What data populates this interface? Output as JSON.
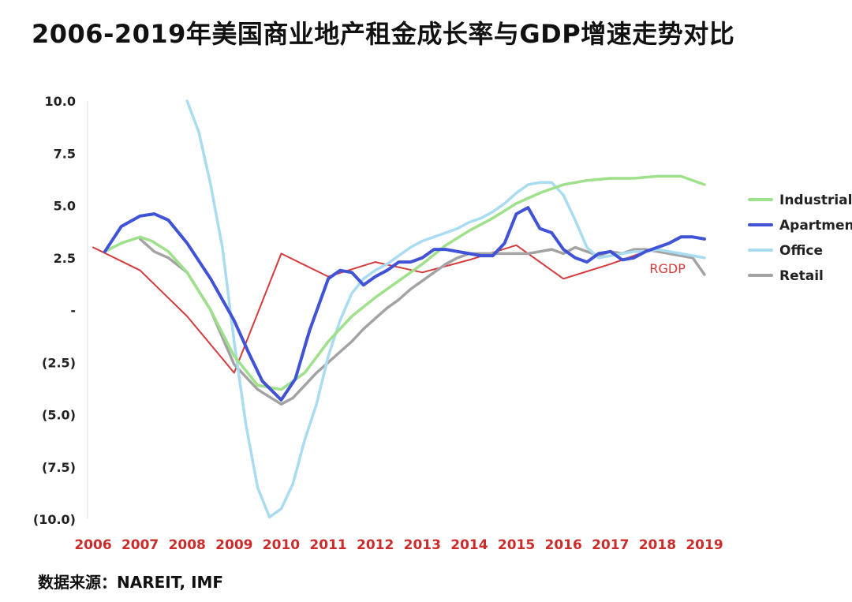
{
  "title": "2006-2019年美国商业地产租金成长率与GDP增速走势对比",
  "source": "数据来源：NAREIT, IMF",
  "chart_data": {
    "type": "line",
    "title": "2006-2019年美国商业地产租金成长率与GDP增速走势对比",
    "xlabel": "",
    "ylabel": "",
    "xlim": [
      2006,
      2019
    ],
    "ylim": [
      -10,
      10
    ],
    "x_ticks": [
      "2006",
      "2007",
      "2008",
      "2009",
      "2010",
      "2011",
      "2012",
      "2013",
      "2014",
      "2015",
      "2016",
      "2017",
      "2018",
      "2019"
    ],
    "y_ticks": [
      {
        "value": 10,
        "label": "10.0"
      },
      {
        "value": 7.5,
        "label": "7.5"
      },
      {
        "value": 5,
        "label": "5.0"
      },
      {
        "value": 2.5,
        "label": "2.5"
      },
      {
        "value": 0,
        "label": "-"
      },
      {
        "value": -2.5,
        "label": "(2.5)"
      },
      {
        "value": -5,
        "label": "(5.0)"
      },
      {
        "value": -7.5,
        "label": "(7.5)"
      },
      {
        "value": -10,
        "label": "(10.0)"
      }
    ],
    "grid": false,
    "legend_position": "right",
    "series": [
      {
        "name": "Industrial",
        "color": "#9fe08a",
        "x": [
          2006.25,
          2006.6,
          2007.0,
          2007.25,
          2007.6,
          2008.0,
          2008.5,
          2009.0,
          2009.5,
          2010.0,
          2010.5,
          2011.0,
          2011.5,
          2012.0,
          2012.5,
          2013.0,
          2013.5,
          2014.0,
          2014.5,
          2015.0,
          2015.5,
          2016.0,
          2016.5,
          2017.0,
          2017.5,
          2018.0,
          2018.5,
          2019.0
        ],
        "y": [
          2.8,
          3.2,
          3.5,
          3.3,
          2.8,
          1.8,
          0.0,
          -2.2,
          -3.6,
          -3.8,
          -3.0,
          -1.5,
          -0.3,
          0.6,
          1.4,
          2.2,
          3.1,
          3.8,
          4.4,
          5.1,
          5.6,
          6.0,
          6.2,
          6.3,
          6.3,
          6.4,
          6.4,
          6.0
        ]
      },
      {
        "name": "Apartment",
        "color": "#4052d6",
        "x": [
          2006.25,
          2006.6,
          2007.0,
          2007.3,
          2007.6,
          2008.0,
          2008.5,
          2009.0,
          2009.3,
          2009.6,
          2010.0,
          2010.3,
          2010.6,
          2011.0,
          2011.25,
          2011.5,
          2011.75,
          2012.0,
          2012.25,
          2012.5,
          2012.75,
          2013.0,
          2013.25,
          2013.5,
          2013.75,
          2014.0,
          2014.25,
          2014.5,
          2014.75,
          2015.0,
          2015.25,
          2015.5,
          2015.75,
          2016.0,
          2016.25,
          2016.5,
          2016.75,
          2017.0,
          2017.25,
          2017.5,
          2017.75,
          2018.0,
          2018.25,
          2018.5,
          2018.75,
          2019.0
        ],
        "y": [
          2.8,
          4.0,
          4.5,
          4.6,
          4.3,
          3.2,
          1.5,
          -0.5,
          -2.0,
          -3.4,
          -4.3,
          -3.3,
          -1.0,
          1.5,
          1.9,
          1.8,
          1.2,
          1.6,
          1.9,
          2.3,
          2.3,
          2.5,
          2.9,
          2.9,
          2.8,
          2.7,
          2.6,
          2.6,
          3.2,
          4.6,
          4.9,
          3.9,
          3.7,
          2.9,
          2.5,
          2.3,
          2.7,
          2.8,
          2.4,
          2.5,
          2.8,
          3.0,
          3.2,
          3.5,
          3.5,
          3.4
        ]
      },
      {
        "name": "Office",
        "color": "#a9dcf0",
        "x": [
          2008.0,
          2008.25,
          2008.5,
          2008.75,
          2009.0,
          2009.25,
          2009.5,
          2009.75,
          2010.0,
          2010.25,
          2010.5,
          2010.75,
          2011.0,
          2011.25,
          2011.5,
          2011.75,
          2012.0,
          2012.25,
          2012.5,
          2012.75,
          2013.0,
          2013.25,
          2013.5,
          2013.75,
          2014.0,
          2014.25,
          2014.5,
          2014.75,
          2015.0,
          2015.25,
          2015.5,
          2015.75,
          2016.0,
          2016.25,
          2016.5,
          2016.75,
          2017.0,
          2017.25,
          2017.5,
          2017.75,
          2018.0,
          2018.25,
          2018.5,
          2018.75,
          2019.0
        ],
        "y": [
          10.0,
          8.5,
          6.0,
          3.0,
          -1.5,
          -5.5,
          -8.5,
          -9.9,
          -9.5,
          -8.3,
          -6.2,
          -4.5,
          -2.2,
          -0.5,
          0.8,
          1.5,
          1.9,
          2.2,
          2.6,
          3.0,
          3.3,
          3.5,
          3.7,
          3.9,
          4.2,
          4.4,
          4.7,
          5.1,
          5.6,
          6.0,
          6.1,
          6.1,
          5.5,
          4.3,
          3.0,
          2.5,
          2.6,
          2.7,
          2.8,
          2.8,
          2.9,
          2.8,
          2.7,
          2.6,
          2.5
        ]
      },
      {
        "name": "Retail",
        "color": "#a3a3a3",
        "x": [
          2007.0,
          2007.3,
          2007.6,
          2008.0,
          2008.5,
          2009.0,
          2009.5,
          2010.0,
          2010.25,
          2010.5,
          2010.75,
          2011.0,
          2011.25,
          2011.5,
          2011.75,
          2012.0,
          2012.25,
          2012.5,
          2012.75,
          2013.0,
          2013.25,
          2013.5,
          2013.75,
          2014.0,
          2014.25,
          2014.5,
          2014.75,
          2015.0,
          2015.25,
          2015.5,
          2015.75,
          2016.0,
          2016.25,
          2016.5,
          2016.75,
          2017.0,
          2017.25,
          2017.5,
          2017.75,
          2018.0,
          2018.25,
          2018.5,
          2018.75,
          2019.0
        ],
        "y": [
          3.4,
          2.8,
          2.5,
          1.8,
          0.0,
          -2.6,
          -3.8,
          -4.5,
          -4.2,
          -3.6,
          -3.0,
          -2.5,
          -2.0,
          -1.5,
          -0.9,
          -0.4,
          0.1,
          0.5,
          1.0,
          1.4,
          1.8,
          2.2,
          2.5,
          2.7,
          2.7,
          2.7,
          2.7,
          2.7,
          2.7,
          2.8,
          2.9,
          2.7,
          3.0,
          2.8,
          2.6,
          2.8,
          2.7,
          2.9,
          2.9,
          2.8,
          2.7,
          2.6,
          2.5,
          1.7
        ]
      },
      {
        "name": "RGDP",
        "color": "#d63b3b",
        "x": [
          2006.0,
          2007.0,
          2008.0,
          2009.0,
          2010.0,
          2011.0,
          2012.0,
          2013.0,
          2014.0,
          2015.0,
          2016.0,
          2017.0,
          2018.0
        ],
        "y": [
          3.0,
          1.9,
          -0.3,
          -3.0,
          2.7,
          1.6,
          2.3,
          1.8,
          2.4,
          3.1,
          1.5,
          2.2,
          3.0
        ]
      }
    ],
    "annotations": [
      {
        "text": "RGDP",
        "x": 2018.0,
        "y": 2.0
      }
    ]
  }
}
